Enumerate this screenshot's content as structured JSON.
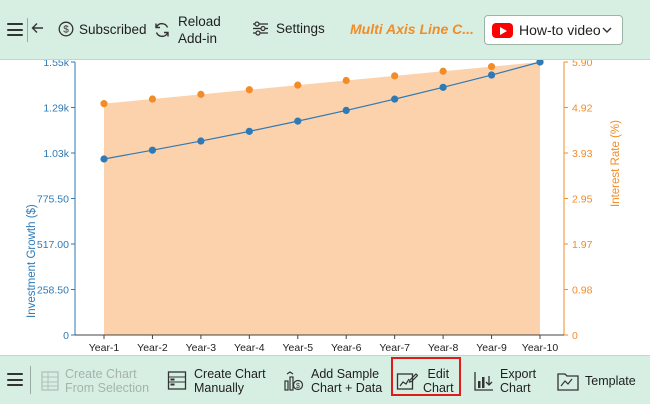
{
  "topbar": {
    "subscribed_label": "Subscribed",
    "reload_label_1": "Reload",
    "reload_label_2": "Add-in",
    "settings_label": "Settings",
    "title": "Multi Axis Line C...",
    "howto_label": "How-to video"
  },
  "bottombar": {
    "create_from_selection_1": "Create Chart",
    "create_from_selection_2": "From Selection",
    "create_manually_1": "Create Chart",
    "create_manually_2": "Manually",
    "add_sample_1": "Add Sample",
    "add_sample_2": "Chart + Data",
    "edit_chart_1": "Edit",
    "edit_chart_2": "Chart",
    "export_chart_1": "Export",
    "export_chart_2": "Chart",
    "template_label": "Template"
  },
  "colors": {
    "toolbar_bg": "#d7efe3",
    "left_axis": "#2f7ab5",
    "right_axis": "#f28c28",
    "area_fill": "#fcd2ad",
    "highlight": "#e01b1b"
  },
  "chart_data": {
    "type": "line",
    "categories": [
      "Year-1",
      "Year-2",
      "Year-3",
      "Year-4",
      "Year-5",
      "Year-6",
      "Year-7",
      "Year-8",
      "Year-9",
      "Year-10"
    ],
    "ylabel_left": "Investment Growth ($)",
    "ylabel_right": "Interest Rate (%)",
    "left_ticks": [
      "0",
      "258.50",
      "517.00",
      "775.50",
      "1.03k",
      "1.29k",
      "1.55k"
    ],
    "right_ticks": [
      "0",
      "0.98",
      "1.97",
      "2.95",
      "3.93",
      "4.92",
      "5.90"
    ],
    "ylim_left": [
      0,
      1551
    ],
    "ylim_right": [
      0,
      5.9
    ],
    "series": [
      {
        "axis": "left",
        "type": "line",
        "color": "#2f7ab5",
        "values": [
          1000,
          1050,
          1102,
          1157,
          1215,
          1276,
          1340,
          1407,
          1477,
          1551
        ]
      },
      {
        "axis": "right",
        "type": "area",
        "color": "#f28c28",
        "values": [
          5.0,
          5.1,
          5.2,
          5.3,
          5.4,
          5.5,
          5.6,
          5.7,
          5.8,
          5.9
        ]
      }
    ],
    "grid": false
  }
}
